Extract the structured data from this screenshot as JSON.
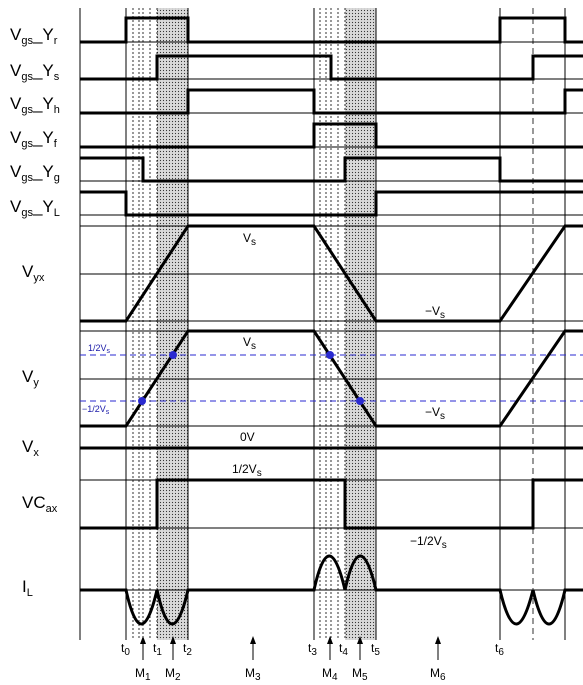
{
  "signals": {
    "yr": {
      "main": "V",
      "sub": "gs",
      "suffix": "_Y",
      "idx": "r"
    },
    "ys": {
      "main": "V",
      "sub": "gs",
      "suffix": "_Y",
      "idx": "s"
    },
    "yh": {
      "main": "V",
      "sub": "gs",
      "suffix": "_Y",
      "idx": "h"
    },
    "yf": {
      "main": "V",
      "sub": "gs",
      "suffix": "_Y",
      "idx": "f"
    },
    "yg": {
      "main": "V",
      "sub": "gs",
      "suffix": "_Y",
      "idx": "g"
    },
    "yl": {
      "main": "V",
      "sub": "gs",
      "suffix": "_Y",
      "idx": "L"
    },
    "vyx": {
      "main": "V",
      "sub": "yx"
    },
    "vy": {
      "main": "V",
      "sub": "y"
    },
    "vx": {
      "main": "V",
      "sub": "x"
    },
    "vcax": {
      "main": "VC",
      "sub": "ax"
    },
    "il": {
      "main": "I",
      "sub": "L"
    }
  },
  "annotations": {
    "vyx_high": {
      "main": "V",
      "sub": "s"
    },
    "vyx_low": {
      "main": "−V",
      "sub": "s"
    },
    "vy_high": {
      "main": "V",
      "sub": "s"
    },
    "vy_low": {
      "main": "−V",
      "sub": "s"
    },
    "vx_level": "0V",
    "vcax_high": {
      "main": "1/2V",
      "sub": "s"
    },
    "vcax_low": {
      "main": "−1/2V",
      "sub": "s"
    },
    "blue_pos": {
      "main": "1/2V",
      "sub": "s"
    },
    "blue_neg": {
      "main": "−1/2V",
      "sub": "s"
    }
  },
  "time_marks": [
    {
      "main": "t",
      "sub": "0"
    },
    {
      "main": "t",
      "sub": "1"
    },
    {
      "main": "t",
      "sub": "2"
    },
    {
      "main": "t",
      "sub": "3"
    },
    {
      "main": "t",
      "sub": "4"
    },
    {
      "main": "t",
      "sub": "5"
    },
    {
      "main": "t",
      "sub": "6"
    }
  ],
  "modes": [
    {
      "main": "M",
      "sub": "1"
    },
    {
      "main": "M",
      "sub": "2"
    },
    {
      "main": "M",
      "sub": "3"
    },
    {
      "main": "M",
      "sub": "4"
    },
    {
      "main": "M",
      "sub": "5"
    },
    {
      "main": "M",
      "sub": "6"
    }
  ],
  "colors": {
    "line": "#000000",
    "shade": "#cccccc",
    "dots": "#444444",
    "blue": "#2a2ad0"
  }
}
